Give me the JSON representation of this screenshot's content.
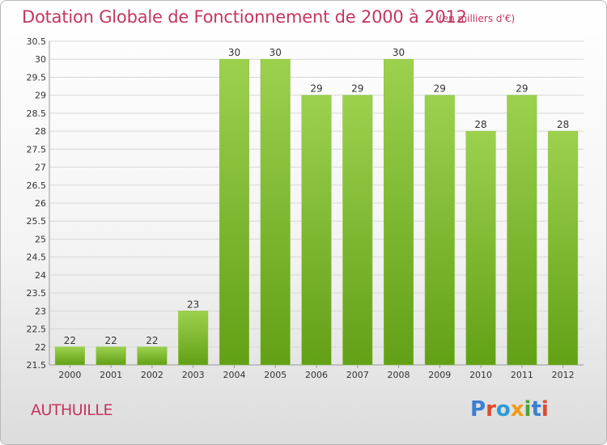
{
  "chart_data": {
    "type": "bar",
    "title": "Dotation Globale de Fonctionnement de 2000 à 2012",
    "unit_note": "(en milliers d'€)",
    "categories": [
      "2000",
      "2001",
      "2002",
      "2003",
      "2004",
      "2005",
      "2006",
      "2007",
      "2008",
      "2009",
      "2010",
      "2011",
      "2012"
    ],
    "values": [
      22,
      22,
      22,
      23,
      30,
      30,
      29,
      29,
      30,
      29,
      28,
      29,
      28
    ],
    "data_labels": [
      "22",
      "22",
      "22",
      "23",
      "30",
      "30",
      "29",
      "29",
      "30",
      "29",
      "28",
      "29",
      "28"
    ],
    "ylim": [
      21.5,
      30.5
    ],
    "yticks": [
      "21.5",
      "22",
      "22.5",
      "23",
      "23.5",
      "24",
      "24.5",
      "25",
      "25.5",
      "26",
      "26.5",
      "27",
      "27.5",
      "28",
      "28.5",
      "29",
      "29.5",
      "30",
      "30.5"
    ],
    "xlabel": "",
    "ylabel": "",
    "grid": true,
    "bar_color": "#7cbf2e"
  },
  "commune": "AUTHUILLE",
  "logo": {
    "text": "Proxiti",
    "colors": [
      "#3a7fd1",
      "#e04a2a",
      "#2d9ad6",
      "#f29a18",
      "#4aa336",
      "#3a7fd1",
      "#e04a2a"
    ]
  },
  "colors": {
    "title": "#c4365f",
    "grid": "#d8d8d8"
  }
}
